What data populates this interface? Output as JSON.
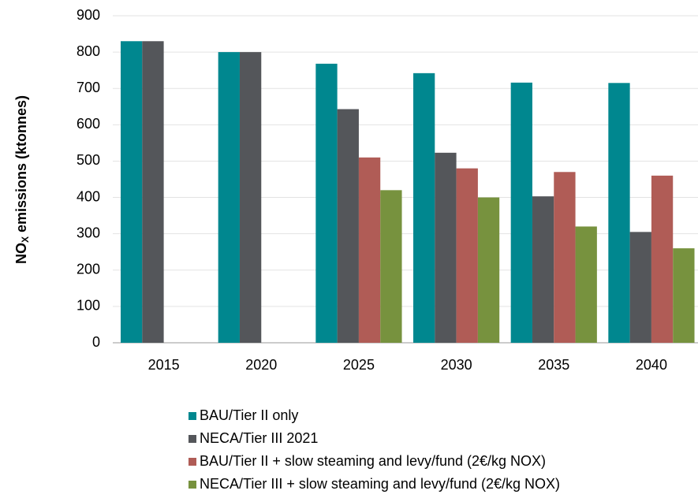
{
  "chart_data": {
    "type": "bar",
    "y_label": [
      "NO",
      "X",
      " emissions (ktonnes)"
    ],
    "categories": [
      "2015",
      "2020",
      "2025",
      "2030",
      "2035",
      "2040"
    ],
    "series": [
      {
        "name": "BAU/Tier II only",
        "color": "#00878f",
        "values": [
          830,
          800,
          768,
          742,
          716,
          715
        ]
      },
      {
        "name": "NECA/Tier III 2021",
        "color": "#54565a",
        "values": [
          830,
          800,
          643,
          523,
          403,
          305
        ]
      },
      {
        "name": "BAU/Tier II + slow steaming and levy/fund (2€/kg NOX)",
        "color": "#b05c56",
        "values": [
          null,
          null,
          510,
          480,
          470,
          460
        ]
      },
      {
        "name": "NECA/Tier III + slow steaming and levy/fund (2€/kg NOX)",
        "color": "#77923e",
        "values": [
          null,
          null,
          420,
          400,
          320,
          260
        ]
      }
    ],
    "ylim": [
      0,
      900
    ],
    "yticks": [
      0,
      100,
      200,
      300,
      400,
      500,
      600,
      700,
      800,
      900
    ],
    "grid": true
  }
}
